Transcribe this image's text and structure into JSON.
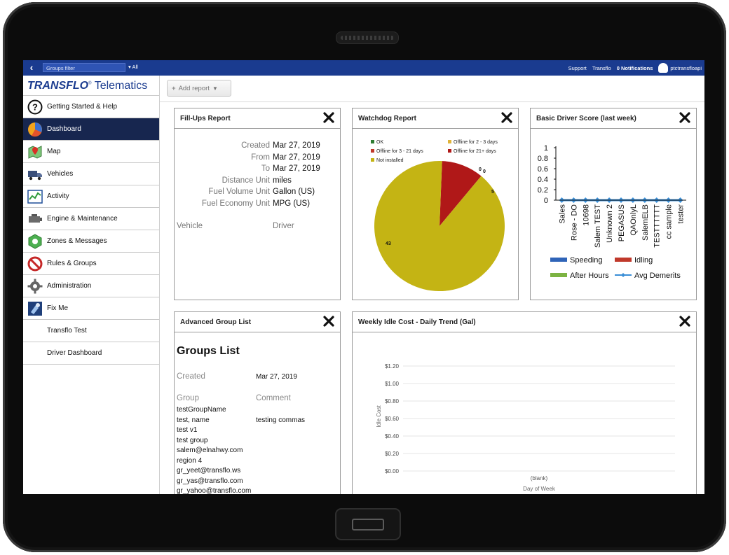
{
  "topbar": {
    "groups_filter_placeholder": "Groups filter",
    "groups_select": "All",
    "support": "Support",
    "transflo": "Transflo",
    "notifications": "0 Notifications",
    "username": "ptctransfloapi"
  },
  "brand": {
    "transflo": "TRANSFLO",
    "telematics": "Telematics",
    "mark": "®"
  },
  "sidebar": {
    "items": [
      {
        "label": "Getting Started & Help",
        "icon": "question-icon"
      },
      {
        "label": "Dashboard",
        "icon": "pie-icon",
        "active": true
      },
      {
        "label": "Map",
        "icon": "map-icon"
      },
      {
        "label": "Vehicles",
        "icon": "truck-icon"
      },
      {
        "label": "Activity",
        "icon": "activity-chart-icon"
      },
      {
        "label": "Engine & Maintenance",
        "icon": "engine-icon"
      },
      {
        "label": "Zones & Messages",
        "icon": "zones-icon"
      },
      {
        "label": "Rules & Groups",
        "icon": "rules-icon"
      },
      {
        "label": "Administration",
        "icon": "gear-icon"
      },
      {
        "label": "Fix Me",
        "icon": "fixme-icon"
      },
      {
        "label": "Transflo Test"
      },
      {
        "label": "Driver Dashboard"
      }
    ]
  },
  "toolbar": {
    "add_report": "Add report"
  },
  "fillups": {
    "title": "Fill-Ups Report",
    "rows": [
      {
        "label": "Created",
        "value": "Mar 27, 2019"
      },
      {
        "label": "From",
        "value": "Mar 27, 2019"
      },
      {
        "label": "To",
        "value": "Mar 27, 2019"
      },
      {
        "label": "Distance Unit",
        "value": "miles"
      },
      {
        "label": "Fuel Volume Unit",
        "value": "Gallon (US)"
      },
      {
        "label": "Fuel Economy Unit",
        "value": "MPG (US)"
      }
    ],
    "col_vehicle": "Vehicle",
    "col_driver": "Driver"
  },
  "watchdog": {
    "title": "Watchdog Report",
    "legend": [
      {
        "label": "OK",
        "color": "#2e7d32"
      },
      {
        "label": "Offline for 2 - 3 days",
        "color": "#e0b43a"
      },
      {
        "label": "Offline for 3 - 21 days",
        "color": "#c0392b"
      },
      {
        "label": "Offline for 21+ days",
        "color": "#b01818"
      },
      {
        "label": "Not installed",
        "color": "#c4b414"
      }
    ],
    "slice_labels": {
      "a": "0",
      "b": "0",
      "c": "5",
      "d": "43"
    }
  },
  "driver_score": {
    "title": "Basic Driver Score (last week)",
    "legend": [
      "Speeding",
      "Idling",
      "After Hours",
      "Avg Demerits"
    ]
  },
  "group_list": {
    "title": "Advanced Group List",
    "heading": "Groups List",
    "created_label": "Created",
    "created_value": "Mar 27, 2019",
    "group_label": "Group",
    "comment_label": "Comment",
    "rows": [
      {
        "group": "testGroupName",
        "comment": ""
      },
      {
        "group": "test, name",
        "comment": "testing commas"
      },
      {
        "group": "test v1",
        "comment": ""
      },
      {
        "group": "test group",
        "comment": ""
      },
      {
        "group": "salem@elnahwy.com",
        "comment": ""
      },
      {
        "group": "region 4",
        "comment": ""
      },
      {
        "group": "gr_yeet@transflo.ws",
        "comment": ""
      },
      {
        "group": "gr_yas@transflo.com",
        "comment": ""
      },
      {
        "group": "gr_yahoo@transflo.com",
        "comment": ""
      }
    ]
  },
  "idle_cost": {
    "title": "Weekly Idle Cost - Daily Trend (Gal)"
  },
  "chart_data": [
    {
      "type": "pie",
      "title": "Watchdog Report",
      "categories": [
        "OK",
        "Offline for 2 - 3 days",
        "Offline for 3 - 21 days",
        "Offline for 21+ days",
        "Not installed"
      ],
      "values": [
        0,
        0,
        0,
        5,
        43
      ],
      "legend": "top"
    },
    {
      "type": "line",
      "title": "Basic Driver Score (last week)",
      "categories": [
        "Sales",
        "Rose - DO",
        "10698",
        "Salem TEST",
        "Unknown 2",
        "PEGASUS",
        "QAOnlyL",
        "SalemELB",
        "TESTTTTTT",
        "cc sample",
        "tester"
      ],
      "series": [
        {
          "name": "Speeding",
          "values": [
            0,
            0,
            0,
            0,
            0,
            0,
            0,
            0,
            0,
            0,
            0
          ],
          "color": "#2f64b8"
        },
        {
          "name": "Idling",
          "values": [
            0,
            0,
            0,
            0,
            0,
            0,
            0,
            0,
            0,
            0,
            0
          ],
          "color": "#c0392b"
        },
        {
          "name": "After Hours",
          "values": [
            0,
            0,
            0,
            0,
            0,
            0,
            0,
            0,
            0,
            0,
            0
          ],
          "color": "#7cb342"
        },
        {
          "name": "Avg Demerits",
          "values": [
            0,
            0,
            0,
            0,
            0,
            0,
            0,
            0,
            0,
            0,
            0
          ],
          "color": "#3a8ed6"
        }
      ],
      "yticks": [
        "1",
        "0.8",
        "0.6",
        "0.4",
        "0.2",
        "0"
      ],
      "ylim": [
        0,
        1
      ],
      "legend": "bottom"
    },
    {
      "type": "line",
      "title": "Weekly Idle Cost - Daily Trend (Gal)",
      "categories": [
        "(blank)"
      ],
      "series": [],
      "yticks": [
        "$1.20",
        "$1.00",
        "$0.80",
        "$0.60",
        "$0.40",
        "$0.20",
        "$0.00"
      ],
      "ylim": [
        0,
        1.2
      ],
      "xlabel": "Day of Week",
      "ylabel": "Idle Cost",
      "grid": true
    }
  ]
}
